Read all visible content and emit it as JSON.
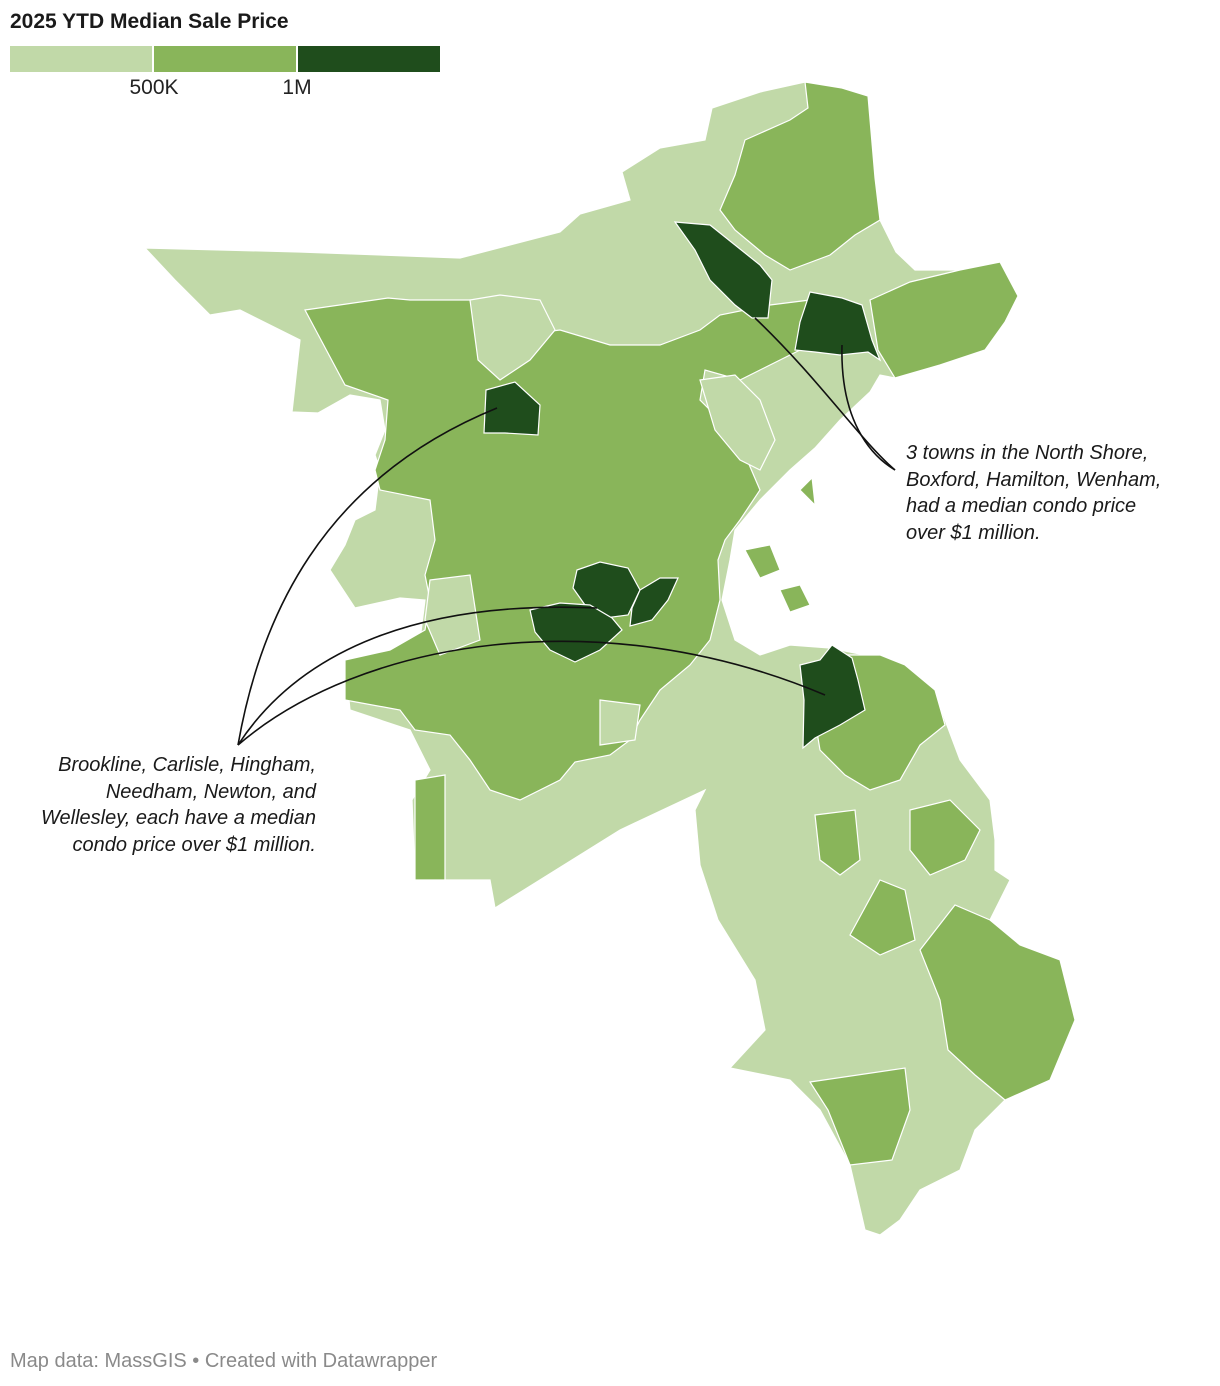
{
  "title": "2025 YTD Median Sale Price",
  "legend": {
    "colors": [
      "#c1d9a8",
      "#89b55a",
      "#1f4d1c"
    ],
    "ticks": [
      "500K",
      "1M"
    ]
  },
  "annotations": {
    "north_shore": "3 towns in the North Shore, Boxford, Hamilton, Wenham, had a median condo price over $1 million.",
    "metro": "Brookline, Carlisle, Hingham, Needham, Newton, and Wellesley, each have a median condo price over $1 million."
  },
  "footer": "Map data: MassGIS • Created with Datawrapper",
  "map": {
    "region_colors": {
      "low": "#c1d9a8",
      "mid": "#89b55a",
      "high": "#1f4d1c"
    },
    "highlighted_towns_over_1m": [
      "Boxford",
      "Hamilton",
      "Wenham",
      "Brookline",
      "Carlisle",
      "Hingham",
      "Needham",
      "Newton",
      "Wellesley"
    ]
  }
}
